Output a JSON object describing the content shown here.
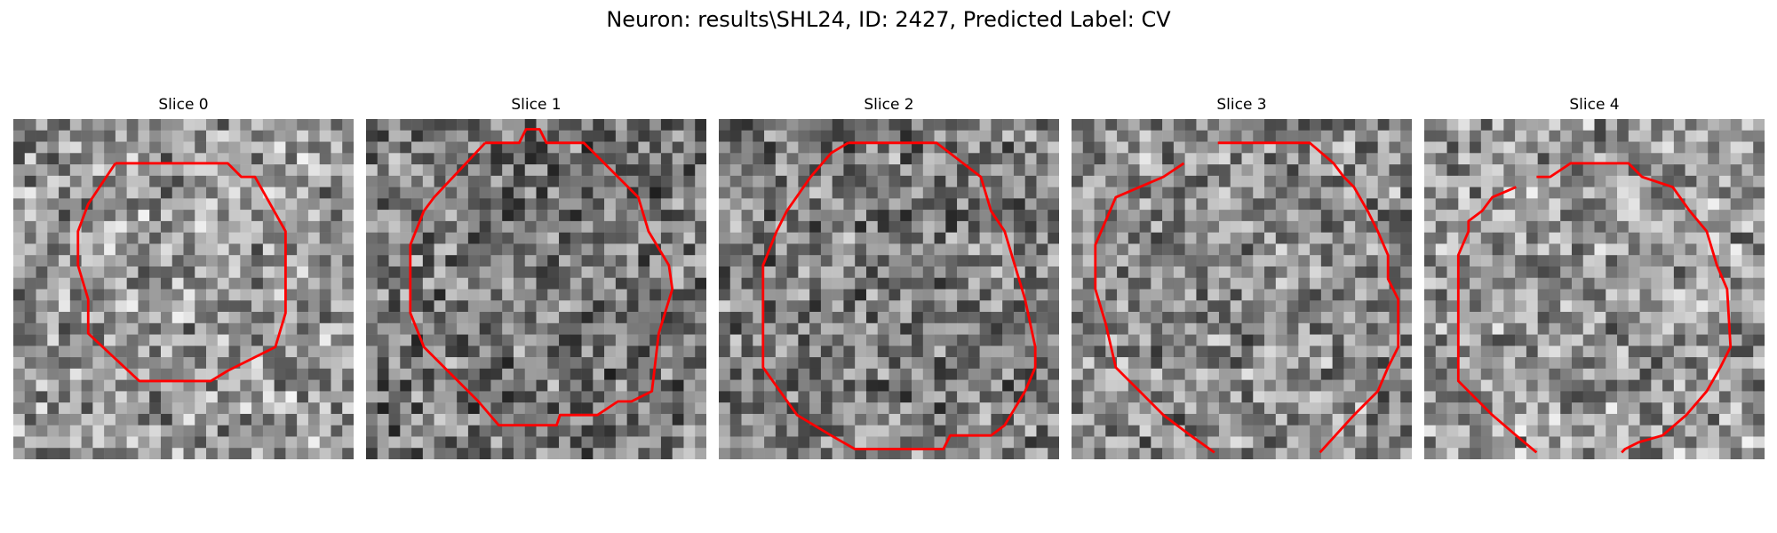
{
  "figure": {
    "title": "Neuron: results\\SHL24, ID: 2427, Predicted Label: CV"
  },
  "panels": [
    {
      "label": "Slice 0",
      "seed": 11,
      "base": 150,
      "outline": [
        [
          0.3,
          0.13
        ],
        [
          0.63,
          0.13
        ],
        [
          0.67,
          0.17
        ],
        [
          0.71,
          0.17
        ],
        [
          0.8,
          0.33
        ],
        [
          0.8,
          0.57
        ],
        [
          0.77,
          0.67
        ],
        [
          0.63,
          0.74
        ],
        [
          0.58,
          0.77
        ],
        [
          0.37,
          0.77
        ],
        [
          0.22,
          0.63
        ],
        [
          0.22,
          0.53
        ],
        [
          0.19,
          0.43
        ],
        [
          0.19,
          0.33
        ],
        [
          0.22,
          0.25
        ]
      ]
    },
    {
      "label": "Slice 1",
      "seed": 23,
      "base": 120,
      "outline": [
        [
          0.35,
          0.07
        ],
        [
          0.45,
          0.07
        ],
        [
          0.47,
          0.03
        ],
        [
          0.51,
          0.03
        ],
        [
          0.53,
          0.07
        ],
        [
          0.64,
          0.07
        ],
        [
          0.7,
          0.13
        ],
        [
          0.8,
          0.23
        ],
        [
          0.83,
          0.33
        ],
        [
          0.89,
          0.43
        ],
        [
          0.9,
          0.5
        ],
        [
          0.86,
          0.63
        ],
        [
          0.84,
          0.8
        ],
        [
          0.78,
          0.83
        ],
        [
          0.74,
          0.83
        ],
        [
          0.68,
          0.87
        ],
        [
          0.57,
          0.87
        ],
        [
          0.56,
          0.9
        ],
        [
          0.39,
          0.9
        ],
        [
          0.33,
          0.83
        ],
        [
          0.23,
          0.73
        ],
        [
          0.17,
          0.67
        ],
        [
          0.13,
          0.57
        ],
        [
          0.13,
          0.37
        ],
        [
          0.17,
          0.27
        ],
        [
          0.2,
          0.23
        ]
      ]
    },
    {
      "label": "Slice 2",
      "seed": 37,
      "base": 125,
      "outline": [
        [
          0.38,
          0.07
        ],
        [
          0.64,
          0.07
        ],
        [
          0.77,
          0.17
        ],
        [
          0.8,
          0.27
        ],
        [
          0.84,
          0.33
        ],
        [
          0.87,
          0.43
        ],
        [
          0.9,
          0.53
        ],
        [
          0.93,
          0.67
        ],
        [
          0.93,
          0.73
        ],
        [
          0.9,
          0.8
        ],
        [
          0.84,
          0.9
        ],
        [
          0.8,
          0.93
        ],
        [
          0.68,
          0.93
        ],
        [
          0.66,
          0.97
        ],
        [
          0.4,
          0.97
        ],
        [
          0.33,
          0.93
        ],
        [
          0.23,
          0.87
        ],
        [
          0.18,
          0.8
        ],
        [
          0.13,
          0.73
        ],
        [
          0.13,
          0.43
        ],
        [
          0.17,
          0.33
        ],
        [
          0.2,
          0.27
        ],
        [
          0.27,
          0.17
        ],
        [
          0.33,
          0.1
        ]
      ]
    },
    {
      "label": "Slice 3",
      "seed": 53,
      "base": 140,
      "outline": [
        [
          0.43,
          0.07
        ],
        [
          0.7,
          0.07
        ],
        [
          0.77,
          0.13
        ],
        [
          0.8,
          0.17
        ],
        [
          0.83,
          0.2
        ],
        [
          0.87,
          0.27
        ],
        [
          0.9,
          0.33
        ],
        [
          0.93,
          0.4
        ],
        [
          0.93,
          0.47
        ],
        [
          0.96,
          0.53
        ],
        [
          0.96,
          0.67
        ],
        [
          0.93,
          0.73
        ],
        [
          0.9,
          0.8
        ],
        [
          0.87,
          0.83
        ],
        [
          0.83,
          0.87
        ],
        [
          0.73,
          0.98
        ]
      ],
      "outline2": [
        [
          0.42,
          0.98
        ],
        [
          0.35,
          0.93
        ],
        [
          0.27,
          0.87
        ],
        [
          0.2,
          0.8
        ],
        [
          0.13,
          0.73
        ],
        [
          0.1,
          0.6
        ],
        [
          0.07,
          0.5
        ],
        [
          0.07,
          0.37
        ],
        [
          0.1,
          0.3
        ],
        [
          0.13,
          0.23
        ],
        [
          0.2,
          0.2
        ],
        [
          0.27,
          0.17
        ],
        [
          0.33,
          0.13
        ]
      ]
    },
    {
      "label": "Slice 4",
      "seed": 71,
      "base": 150,
      "outline": [
        [
          0.33,
          0.17
        ],
        [
          0.37,
          0.17
        ],
        [
          0.43,
          0.13
        ],
        [
          0.6,
          0.13
        ],
        [
          0.64,
          0.17
        ],
        [
          0.73,
          0.2
        ],
        [
          0.78,
          0.27
        ],
        [
          0.83,
          0.33
        ],
        [
          0.86,
          0.43
        ],
        [
          0.89,
          0.5
        ],
        [
          0.9,
          0.67
        ],
        [
          0.87,
          0.73
        ],
        [
          0.83,
          0.8
        ],
        [
          0.77,
          0.87
        ],
        [
          0.7,
          0.93
        ],
        [
          0.63,
          0.95
        ],
        [
          0.59,
          0.97
        ],
        [
          0.58,
          0.98
        ]
      ],
      "outline2": [
        [
          0.33,
          0.98
        ],
        [
          0.27,
          0.93
        ],
        [
          0.2,
          0.87
        ],
        [
          0.13,
          0.8
        ],
        [
          0.1,
          0.77
        ],
        [
          0.1,
          0.4
        ],
        [
          0.13,
          0.33
        ],
        [
          0.13,
          0.3
        ],
        [
          0.17,
          0.27
        ],
        [
          0.2,
          0.23
        ],
        [
          0.27,
          0.2
        ]
      ]
    }
  ],
  "colors": {
    "outline": "#ff0000"
  }
}
